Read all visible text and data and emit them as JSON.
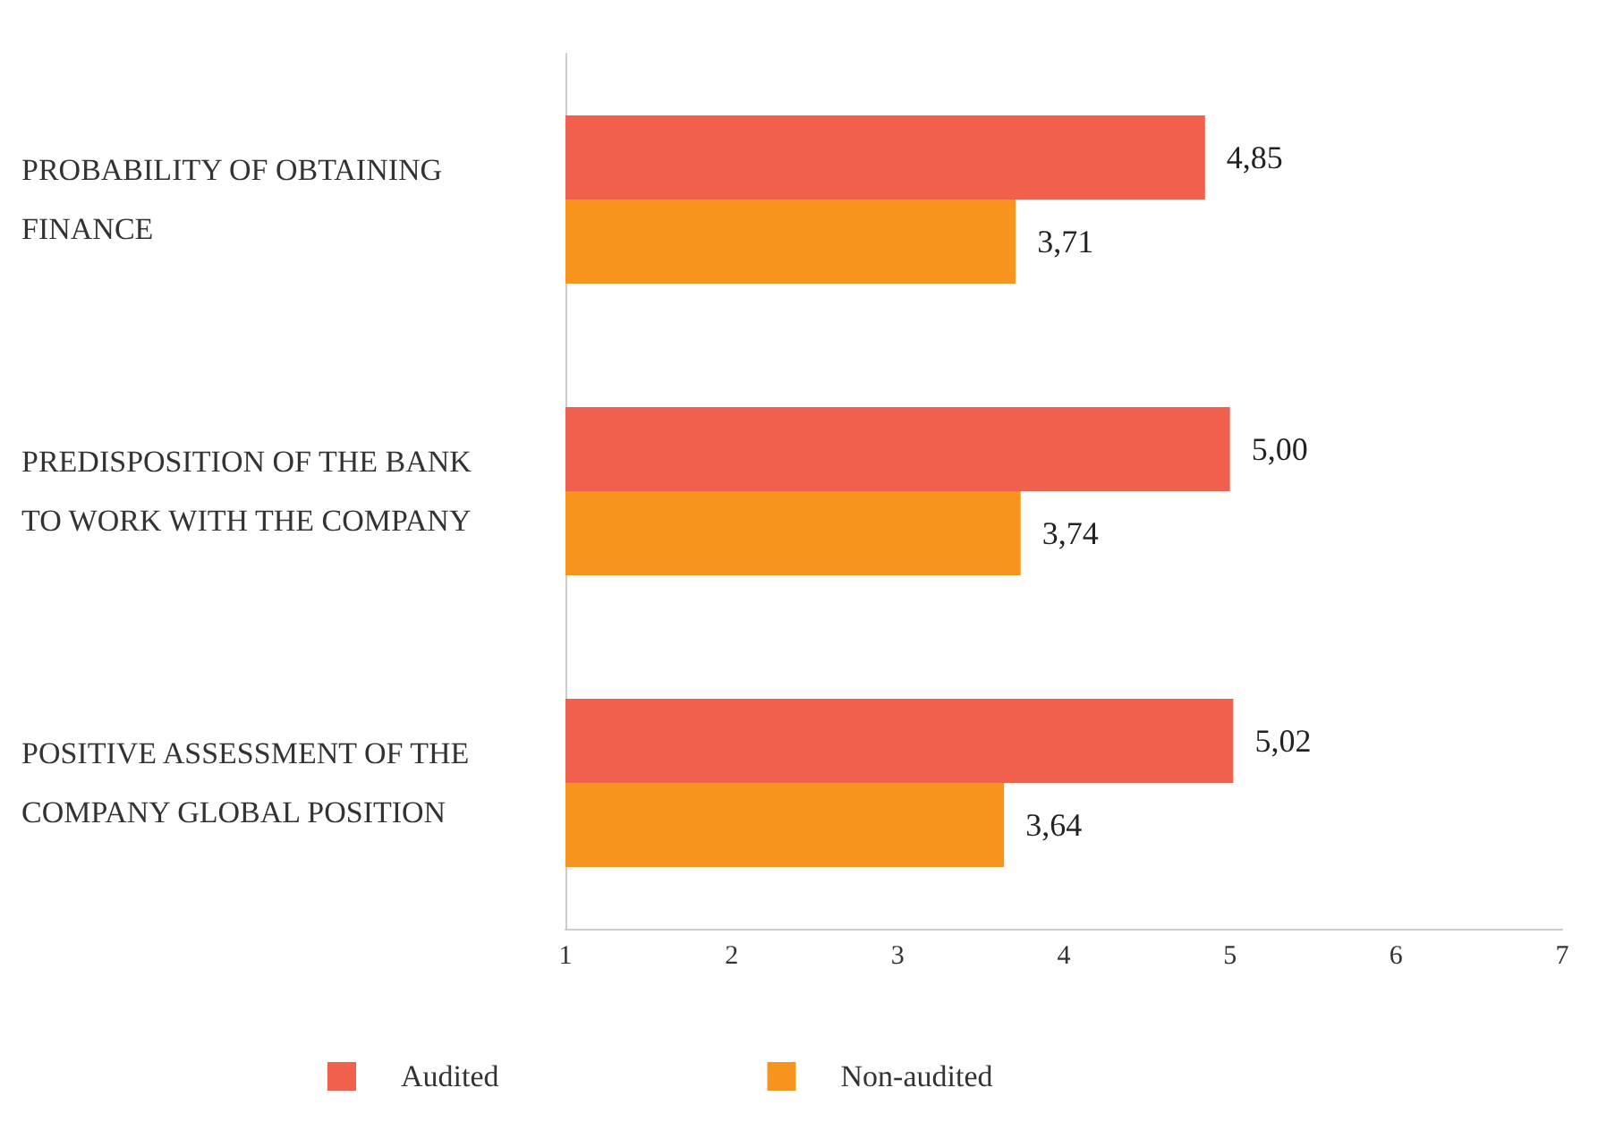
{
  "chart_data": {
    "type": "bar",
    "orientation": "horizontal",
    "categories": [
      "PROBABILITY OF OBTAINING FINANCE",
      "PREDISPOSITION OF THE BANK TO WORK WITH THE COMPANY",
      "POSITIVE ASSESSMENT OF THE COMPANY GLOBAL POSITION"
    ],
    "series": [
      {
        "name": "Audited",
        "color": "#f0604d",
        "values": [
          4.85,
          5.0,
          5.02
        ],
        "value_labels": [
          "4,85",
          "5,00",
          "5,02"
        ]
      },
      {
        "name": "Non-audited",
        "color": "#f7941d",
        "values": [
          3.71,
          3.74,
          3.64
        ],
        "value_labels": [
          "3,71",
          "3,74",
          "3,64"
        ]
      }
    ],
    "xlim": [
      1,
      7
    ],
    "xticks": [
      1,
      2,
      3,
      4,
      5,
      6,
      7
    ],
    "legend": "bottom",
    "grid": false
  }
}
